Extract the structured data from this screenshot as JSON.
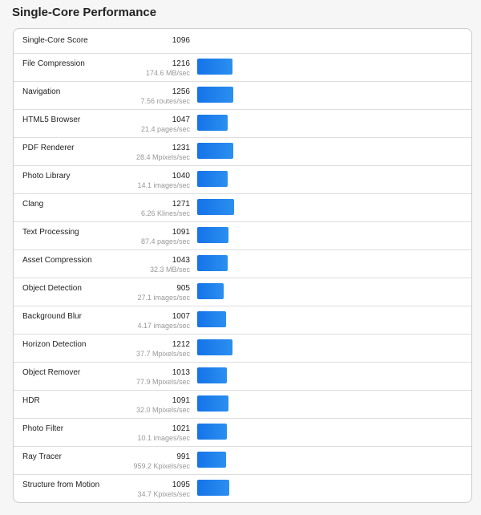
{
  "title": "Single-Core Performance",
  "summary": {
    "label": "Single-Core Score",
    "score": "1096"
  },
  "bar_color": "#1a7aeb",
  "rows": [
    {
      "name": "File Compression",
      "score": "1216",
      "unit": "174.6 MB/sec"
    },
    {
      "name": "Navigation",
      "score": "1256",
      "unit": "7.56 routes/sec"
    },
    {
      "name": "HTML5 Browser",
      "score": "1047",
      "unit": "21.4 pages/sec"
    },
    {
      "name": "PDF Renderer",
      "score": "1231",
      "unit": "28.4 Mpixels/sec"
    },
    {
      "name": "Photo Library",
      "score": "1040",
      "unit": "14.1 images/sec"
    },
    {
      "name": "Clang",
      "score": "1271",
      "unit": "6.26 Klines/sec"
    },
    {
      "name": "Text Processing",
      "score": "1091",
      "unit": "87.4 pages/sec"
    },
    {
      "name": "Asset Compression",
      "score": "1043",
      "unit": "32.3 MB/sec"
    },
    {
      "name": "Object Detection",
      "score": "905",
      "unit": "27.1 images/sec"
    },
    {
      "name": "Background Blur",
      "score": "1007",
      "unit": "4.17 images/sec"
    },
    {
      "name": "Horizon Detection",
      "score": "1212",
      "unit": "37.7 Mpixels/sec"
    },
    {
      "name": "Object Remover",
      "score": "1013",
      "unit": "77.9 Mpixels/sec"
    },
    {
      "name": "HDR",
      "score": "1091",
      "unit": "32.0 Mpixels/sec"
    },
    {
      "name": "Photo Filter",
      "score": "1021",
      "unit": "10.1 images/sec"
    },
    {
      "name": "Ray Tracer",
      "score": "991",
      "unit": "959.2 Kpixels/sec"
    },
    {
      "name": "Structure from Motion",
      "score": "1095",
      "unit": "34.7 Kpixels/sec"
    }
  ]
}
